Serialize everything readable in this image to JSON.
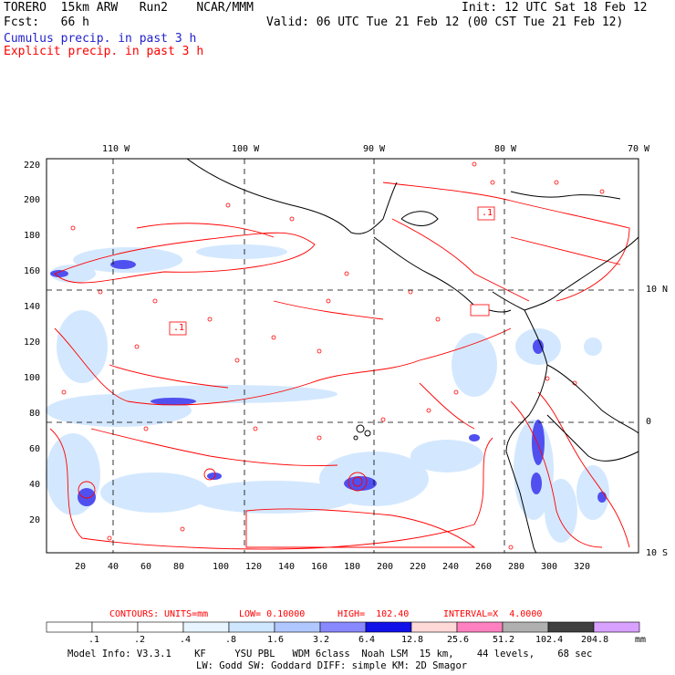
{
  "header": {
    "model": "TORERO  15km ARW   Run2    NCAR/MMM",
    "init": "Init: 12 UTC Sat 18 Feb 12",
    "fcst": "Fcst:   66 h",
    "valid": "Valid: 06 UTC Tue 21 Feb 12 (00 CST Tue 21 Feb 12)",
    "field1": "Cumulus precip. in past 3 h",
    "field2": "Explicit precip. in past 3 h"
  },
  "colors": {
    "cumulus": "#2222cc",
    "explicit": "#ff0000"
  },
  "axes": {
    "y_ticks": [
      "220",
      "200",
      "180",
      "160",
      "140",
      "120",
      "100",
      "80",
      "60",
      "40",
      "20"
    ],
    "x_ticks": [
      "20",
      "40",
      "60",
      "80",
      "100",
      "120",
      "140",
      "160",
      "180",
      "200",
      "220",
      "240",
      "260",
      "280",
      "300",
      "320"
    ],
    "lon_labels": [
      "110 W",
      "100 W",
      "90 W",
      "80 W",
      "70 W"
    ],
    "lat_labels": [
      "10 N",
      "0",
      "10 S"
    ]
  },
  "map_labels": {
    "contour_low_a": ".1",
    "contour_low_b": ".1"
  },
  "contours_text": {
    "label": "CONTOURS:",
    "units": "UNITS=mm",
    "low": "LOW= 0.10000",
    "high": "HIGH=  102.40",
    "interval": "INTERVAL=X  4.0000"
  },
  "colorbar": {
    "colors": [
      "#ffffff",
      "#ffffff",
      "#ffffff",
      "#e8f4ff",
      "#cfe6ff",
      "#b0c8ff",
      "#8888ff",
      "#5050f0",
      "#1010e8",
      "#ffd8d8",
      "#ff80c0",
      "#b0b0b0",
      "#404040",
      "#d8a0ff"
    ],
    "boundaries": [
      ".1",
      ".2",
      ".4",
      ".8",
      "1.6",
      "3.2",
      "6.4",
      "12.8",
      "25.6",
      "51.2",
      "102.4",
      "204.8"
    ],
    "unit": "mm"
  },
  "footer": {
    "line1": "Model Info: V3.3.1    KF     YSU PBL   WDM 6class  Noah LSM  15 km,    44 levels,    68 sec",
    "line2": "LW: Godd SW: Goddard DIFF: simple KM: 2D Smagor"
  }
}
